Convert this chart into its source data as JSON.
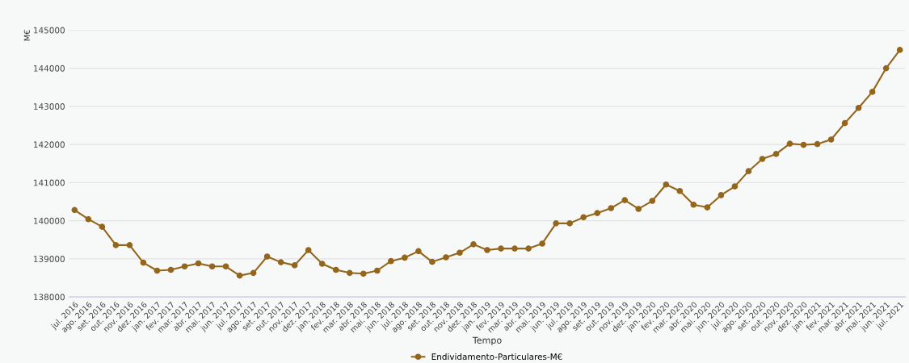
{
  "chart_data": {
    "type": "line",
    "xlabel": "Tempo",
    "ylabel": "M€",
    "categories": [
      "jul. 2016",
      "ago. 2016",
      "set. 2016",
      "out. 2016",
      "nov. 2016",
      "dez. 2016",
      "jan. 2017",
      "fev. 2017",
      "mar. 2017",
      "abr. 2017",
      "mai. 2017",
      "jun. 2017",
      "jul. 2017",
      "ago. 2017",
      "set. 2017",
      "out. 2017",
      "nov. 2017",
      "dez. 2017",
      "jan. 2018",
      "fev. 2018",
      "mar. 2018",
      "abr. 2018",
      "mai. 2018",
      "jun. 2018",
      "jul. 2018",
      "ago. 2018",
      "set. 2018",
      "out. 2018",
      "nov. 2018",
      "dez. 2018",
      "jan. 2019",
      "fev. 2019",
      "mar. 2019",
      "abr. 2019",
      "mai. 2019",
      "jun. 2019",
      "jul. 2019",
      "ago. 2019",
      "set. 2019",
      "out. 2019",
      "nov. 2019",
      "dez. 2019",
      "jan. 2020",
      "fev. 2020",
      "mar. 2020",
      "abr. 2020",
      "mai. 2020",
      "jun. 2020",
      "jul. 2020",
      "ago. 2020",
      "set. 2020",
      "out. 2020",
      "nov. 2020",
      "dez. 2020",
      "jan. 2021",
      "fev. 2021",
      "mar. 2021",
      "abr. 2021",
      "mai. 2021",
      "jun. 2021",
      "jul. 2021"
    ],
    "series": [
      {
        "name": "Endividamento-Particulares-M€",
        "color": "#94661c",
        "values": [
          140280,
          140040,
          139840,
          139360,
          139360,
          138900,
          138690,
          138710,
          138800,
          138880,
          138800,
          138800,
          138560,
          138630,
          139060,
          138910,
          138830,
          139230,
          138870,
          138710,
          138630,
          138610,
          138690,
          138940,
          139030,
          139200,
          138920,
          139040,
          139160,
          139380,
          139230,
          139270,
          139270,
          139270,
          139400,
          139930,
          139930,
          140090,
          140200,
          140330,
          140540,
          140310,
          140520,
          140950,
          140780,
          140420,
          140350,
          140670,
          140900,
          141300,
          141620,
          141750,
          142020,
          141990,
          142010,
          142130,
          142560,
          142960,
          143380,
          144000,
          144480
        ]
      }
    ],
    "ylim": [
      138000,
      145000
    ],
    "yticks": [
      138000,
      139000,
      140000,
      141000,
      142000,
      143000,
      144000,
      145000
    ],
    "grid": "y",
    "legend": "bottom",
    "marker": "circle",
    "line_style": "solid"
  }
}
